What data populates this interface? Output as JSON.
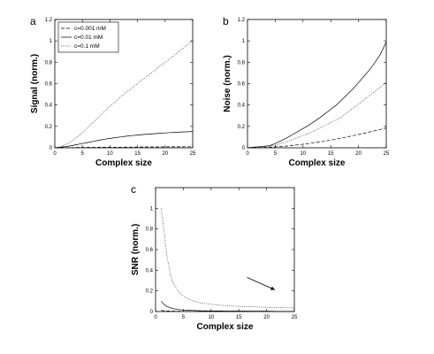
{
  "chart_data": [
    {
      "panel": "a",
      "type": "line",
      "xlabel": "Complex size",
      "ylabel": "Signal (norm.)",
      "xlim": [
        0,
        25
      ],
      "ylim": [
        0,
        1.2
      ],
      "xticks": [
        "0",
        "5",
        "10",
        "15",
        "20",
        "25"
      ],
      "yticks": [
        "0",
        "0.2",
        "0.4",
        "0.6",
        "0.8",
        "1",
        "1.2"
      ],
      "legend": {
        "placement": "top-left"
      },
      "x": [
        0,
        1,
        2,
        3,
        4,
        5,
        6,
        7,
        8,
        9,
        10,
        11,
        12,
        13,
        14,
        15,
        16,
        17,
        18,
        19,
        20,
        21,
        22,
        23,
        24,
        25
      ],
      "series": [
        {
          "name": "c=0.001 mM",
          "style": "dashed",
          "values": [
            0,
            0.001,
            0.002,
            0.002,
            0.003,
            0.003,
            0.004,
            0.004,
            0.005,
            0.005,
            0.006,
            0.006,
            0.006,
            0.007,
            0.007,
            0.007,
            0.008,
            0.008,
            0.008,
            0.008,
            0.009,
            0.009,
            0.009,
            0.009,
            0.01,
            0.01
          ]
        },
        {
          "name": "c=0.01 mM",
          "style": "solid",
          "values": [
            0,
            0.005,
            0.012,
            0.02,
            0.03,
            0.04,
            0.05,
            0.06,
            0.07,
            0.08,
            0.088,
            0.095,
            0.102,
            0.108,
            0.114,
            0.119,
            0.124,
            0.128,
            0.132,
            0.136,
            0.139,
            0.142,
            0.145,
            0.148,
            0.15,
            0.152
          ]
        },
        {
          "name": "c=0.1 mM",
          "style": "dotted",
          "values": [
            0,
            0.01,
            0.03,
            0.06,
            0.1,
            0.14,
            0.19,
            0.24,
            0.29,
            0.34,
            0.39,
            0.43,
            0.48,
            0.52,
            0.56,
            0.6,
            0.64,
            0.68,
            0.72,
            0.76,
            0.8,
            0.84,
            0.88,
            0.92,
            0.96,
            1.0
          ]
        }
      ]
    },
    {
      "panel": "b",
      "type": "line",
      "xlabel": "Complex size",
      "ylabel": "Noise (norm.)",
      "xlim": [
        0,
        25
      ],
      "ylim": [
        0,
        1.2
      ],
      "xticks": [
        "0",
        "5",
        "10",
        "15",
        "20",
        "25"
      ],
      "yticks": [
        "0",
        "0.2",
        "0.4",
        "0.6",
        "0.8",
        "1",
        "1.2"
      ],
      "x": [
        0,
        1,
        2,
        3,
        4,
        5,
        6,
        7,
        8,
        9,
        10,
        11,
        12,
        13,
        14,
        15,
        16,
        17,
        18,
        19,
        20,
        21,
        22,
        23,
        24,
        25
      ],
      "series": [
        {
          "style": "dashed",
          "values": [
            0,
            0.0003,
            0.001,
            0.003,
            0.005,
            0.008,
            0.012,
            0.016,
            0.021,
            0.027,
            0.033,
            0.04,
            0.047,
            0.055,
            0.063,
            0.072,
            0.082,
            0.092,
            0.102,
            0.113,
            0.124,
            0.136,
            0.148,
            0.16,
            0.172,
            0.185
          ]
        },
        {
          "style": "solid",
          "values": [
            0,
            0.005,
            0.01,
            0.015,
            0.02,
            0.04,
            0.065,
            0.09,
            0.12,
            0.15,
            0.18,
            0.21,
            0.245,
            0.28,
            0.32,
            0.36,
            0.4,
            0.45,
            0.5,
            0.55,
            0.61,
            0.67,
            0.73,
            0.8,
            0.88,
            0.99
          ]
        },
        {
          "style": "dotted",
          "values": [
            0,
            0.003,
            0.006,
            0.01,
            0.015,
            0.025,
            0.04,
            0.055,
            0.075,
            0.095,
            0.115,
            0.135,
            0.16,
            0.185,
            0.21,
            0.235,
            0.26,
            0.29,
            0.33,
            0.37,
            0.41,
            0.45,
            0.49,
            0.53,
            0.57,
            0.61
          ]
        }
      ]
    },
    {
      "panel": "c",
      "type": "line",
      "xlabel": "Complex size",
      "ylabel": "SNR (norm.)",
      "xlim": [
        0,
        25
      ],
      "ylim": [
        0,
        1.2
      ],
      "xticks": [
        "0",
        "5",
        "10",
        "15",
        "20",
        "25"
      ],
      "yticks": [
        "0",
        "0.2",
        "0.4",
        "0.6",
        "0.8",
        "1"
      ],
      "annotation": "arrow pointing down-right toward the lower curves near x=20",
      "x": [
        1,
        1.5,
        2,
        2.5,
        3,
        4,
        5,
        6,
        7,
        8,
        10,
        12,
        15,
        18,
        20,
        22,
        25
      ],
      "series": [
        {
          "style": "dotted",
          "values": [
            1.0,
            0.8,
            0.55,
            0.4,
            0.3,
            0.2,
            0.15,
            0.12,
            0.1,
            0.085,
            0.07,
            0.06,
            0.05,
            0.045,
            0.04,
            0.038,
            0.035
          ]
        },
        {
          "style": "solid",
          "values": [
            0.1,
            0.07,
            0.05,
            0.04,
            0.03,
            0.02,
            0.015,
            0.012,
            0.01,
            0.008,
            0.006,
            0.005,
            0.004,
            0.003,
            0.003,
            0.002,
            0.002
          ]
        },
        {
          "style": "dashed",
          "values": [
            0.01,
            0.008,
            0.006,
            0.005,
            0.004,
            0.003,
            0.002,
            0.002,
            0.001,
            0.001,
            0.001,
            0.001,
            0.0005,
            0.0005,
            0.0005,
            0.0005,
            0.0005
          ]
        }
      ]
    }
  ]
}
